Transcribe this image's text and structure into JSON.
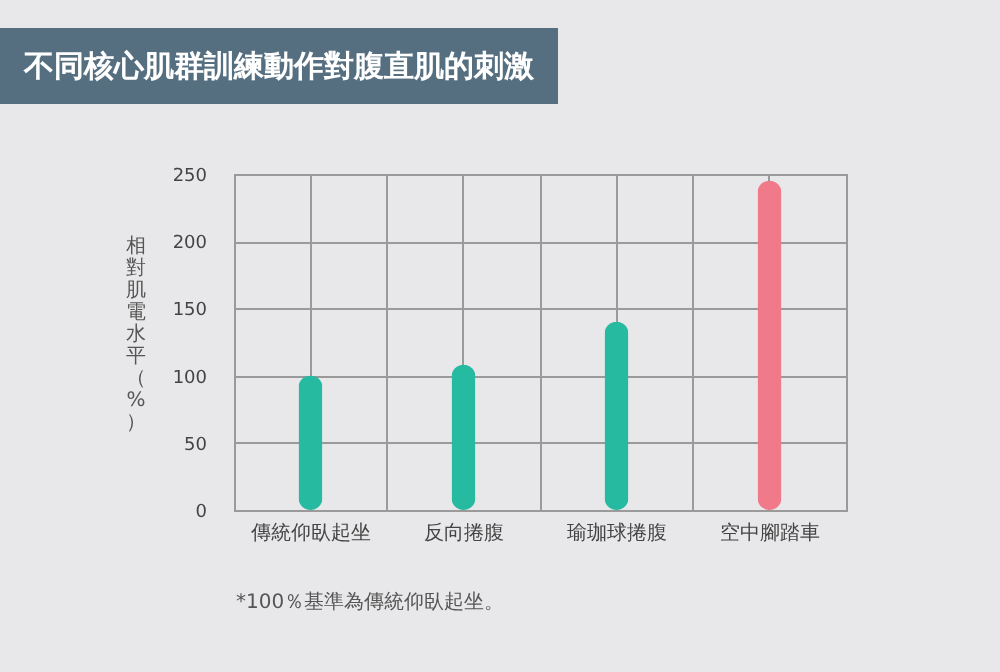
{
  "chart_data": {
    "type": "bar",
    "title": "不同核心肌群訓練動作對腹直肌的刺激",
    "ylabel": "相對肌電水平（%）",
    "categories": [
      "傳統仰臥起坐",
      "反向捲腹",
      "瑜珈球捲腹",
      "空中腳踏車"
    ],
    "values": [
      100,
      108,
      140,
      245
    ],
    "colors": [
      "#26bba0",
      "#26bba0",
      "#26bba0",
      "#f07a8a"
    ],
    "ylim": [
      0,
      250
    ],
    "yticks": [
      0,
      50,
      100,
      150,
      200,
      250
    ],
    "grid": true,
    "annotations": [
      "*100％基準為傳統仰臥起坐。"
    ]
  }
}
